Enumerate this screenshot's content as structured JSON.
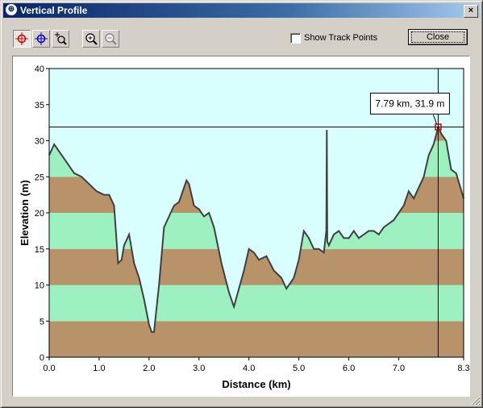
{
  "window": {
    "title": "Vertical Profile",
    "close_glyph": "×"
  },
  "toolbar": {
    "tools": [
      {
        "name": "crosshair-red-icon",
        "pressed": true
      },
      {
        "name": "crosshair-blue-icon",
        "pressed": false
      },
      {
        "name": "zoom-region-icon",
        "pressed": false
      },
      {
        "name": "zoom-in-icon",
        "pressed": false
      },
      {
        "name": "zoom-out-icon",
        "pressed": false
      }
    ],
    "show_track_points_label": "Show Track Points",
    "show_track_points_checked": false,
    "close_label": "Close"
  },
  "colors": {
    "band_brown": "#b89268",
    "band_green": "#9df0c0",
    "sky": "#d8fefe",
    "line": "#404040",
    "marker": "#cc0000"
  },
  "cursor": {
    "label": "7.79 km, 31.9 m",
    "x_km": 7.79,
    "y_m": 31.9
  },
  "chart_data": {
    "type": "area",
    "xlabel": "Distance  (km)",
    "ylabel": "Elevation (m)",
    "xlim": [
      0,
      8.3
    ],
    "ylim": [
      0,
      40
    ],
    "xticks": [
      "0.0",
      "1.0",
      "2.0",
      "3.0",
      "4.0",
      "5.0",
      "6.0",
      "7.0",
      "8.3"
    ],
    "yticks": [
      "0",
      "5",
      "10",
      "15",
      "20",
      "25",
      "30",
      "35",
      "40"
    ],
    "bands_every_m": 5,
    "x": [
      0,
      0.1,
      0.2,
      0.35,
      0.5,
      0.65,
      0.8,
      0.95,
      1.1,
      1.2,
      1.3,
      1.38,
      1.45,
      1.5,
      1.6,
      1.7,
      1.8,
      1.9,
      2.0,
      2.05,
      2.1,
      2.2,
      2.3,
      2.4,
      2.5,
      2.6,
      2.75,
      2.8,
      2.9,
      3.0,
      3.1,
      3.2,
      3.3,
      3.45,
      3.6,
      3.7,
      3.8,
      3.9,
      4.0,
      4.1,
      4.2,
      4.35,
      4.5,
      4.65,
      4.75,
      4.9,
      5.0,
      5.1,
      5.2,
      5.3,
      5.4,
      5.5,
      5.55,
      5.56,
      5.57,
      5.6,
      5.7,
      5.8,
      5.9,
      6.0,
      6.1,
      6.2,
      6.3,
      6.4,
      6.5,
      6.6,
      6.7,
      6.8,
      6.9,
      7.0,
      7.1,
      7.2,
      7.3,
      7.4,
      7.5,
      7.6,
      7.7,
      7.79,
      7.85,
      7.95,
      8.05,
      8.15,
      8.3
    ],
    "values": [
      28,
      29.5,
      28.5,
      27,
      25.5,
      25,
      24,
      23,
      22.5,
      22.5,
      21,
      13,
      13.5,
      15.5,
      17,
      13,
      11,
      8,
      4.5,
      3.5,
      3.5,
      10,
      18,
      19.5,
      21,
      21.5,
      24.5,
      24,
      21,
      20.5,
      19.5,
      20,
      18,
      13,
      9,
      7,
      9.5,
      12,
      15,
      14.5,
      13.5,
      14,
      12,
      11,
      9.5,
      11,
      13.5,
      17.5,
      16.5,
      15,
      15,
      14.5,
      17.5,
      31.5,
      16,
      15.5,
      17,
      17.5,
      16.5,
      16.5,
      17.5,
      16.5,
      17,
      17.5,
      17.5,
      17,
      18,
      18.5,
      19,
      20,
      21,
      23,
      22,
      23.5,
      25,
      28,
      29.5,
      31.9,
      31,
      30,
      26,
      25.5,
      22
    ]
  }
}
